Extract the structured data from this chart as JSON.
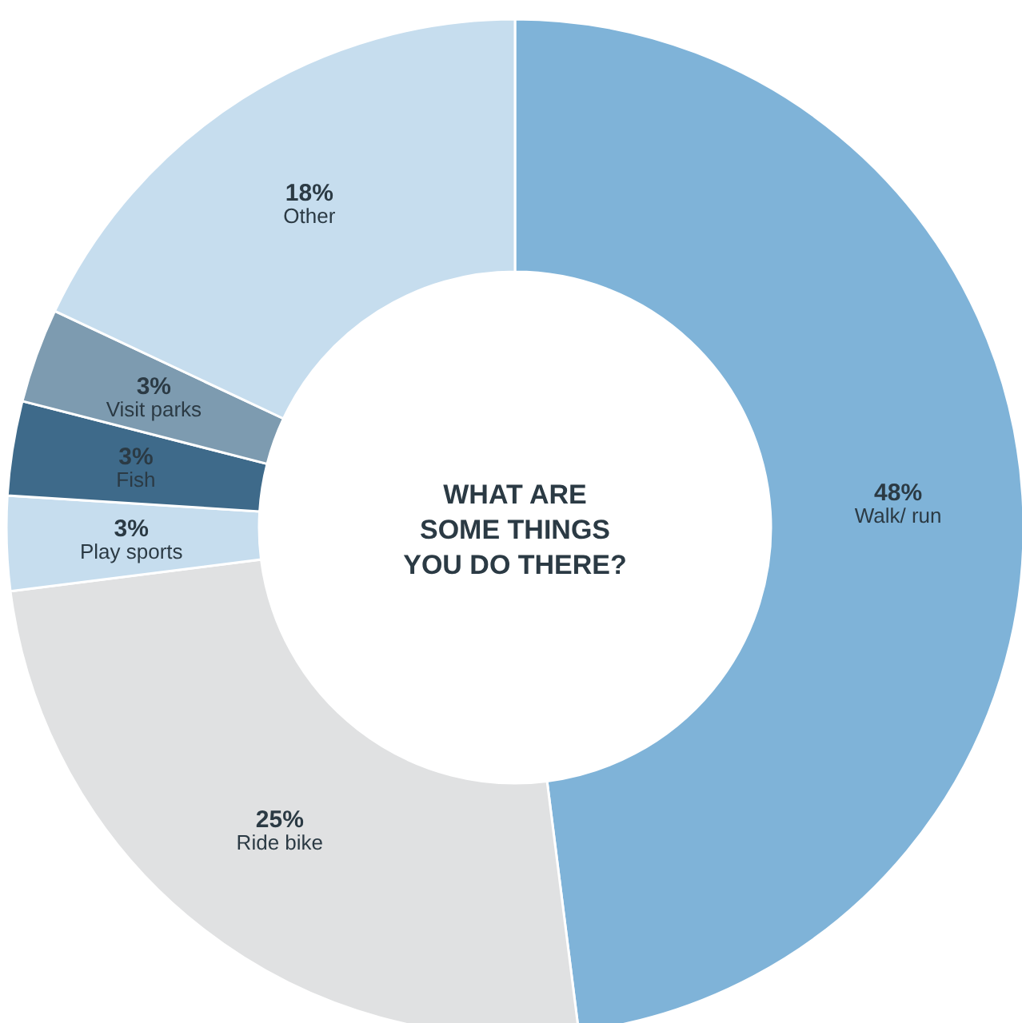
{
  "chart_data": {
    "type": "donut",
    "title": "WHAT ARE\nSOME THINGS\nYOU DO THERE?",
    "categories": [
      "Walk/ run",
      "Ride bike",
      "Play sports",
      "Fish",
      "Visit parks",
      "Other"
    ],
    "values": [
      48,
      25,
      3,
      3,
      3,
      18
    ],
    "value_labels": [
      "48%",
      "25%",
      "3%",
      "3%",
      "3%",
      "18%"
    ],
    "colors": [
      "#7fb3d8",
      "#e0e1e2",
      "#c6ddee",
      "#3e6a8a",
      "#7d9bb0",
      "#c6ddee"
    ]
  }
}
